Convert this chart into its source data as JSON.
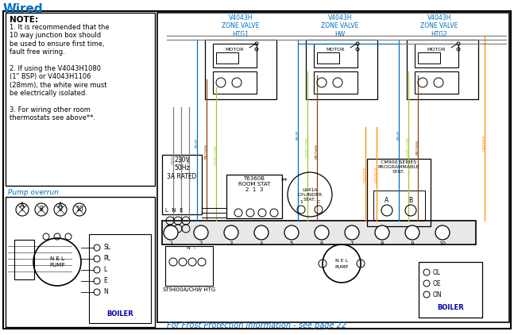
{
  "title": "Wired",
  "title_color": "#0070C0",
  "title_fontsize": 11,
  "bg_color": "#ffffff",
  "border_color": "#000000",
  "note_title": "NOTE:",
  "note_lines": "1. It is recommended that the\n10 way junction box should\nbe used to ensure first time,\nfault free wiring.\n\n2. If using the V4043H1080\n(1\" BSP) or V4043H1106\n(28mm), the white wire must\nbe electrically isolated.\n\n3. For wiring other room\nthermostats see above**.",
  "pump_overrun_label": "Pump overrun",
  "footer_text": "For Frost Protection information - see page 22",
  "footer_color": "#0070C0",
  "zone_valve_labels": [
    "V4043H\nZONE VALVE\nHTG1",
    "V4043H\nZONE VALVE\nHW",
    "V4043H\nZONE VALVE\nHTG2"
  ],
  "zone_valve_color": "#0070C0",
  "supply_label": "230V\n50Hz\n3A RATED",
  "room_stat_label": "T6360B\nROOM STAT\n2  1  3",
  "cylinder_stat_label": "L641A\nCYLINDER\nSTAT.",
  "cm900_label": "CM900 SERIES\nPROGRAMMABLE\nSTAT.",
  "boiler_label": "BOILER",
  "st9400_label": "ST9400A/C",
  "hw_htg_label": "HW HTG",
  "wire_colors": {
    "grey": "#808080",
    "blue": "#0070C0",
    "brown": "#8B4513",
    "gyellow": "#9ACD32",
    "orange": "#FF8C00",
    "black": "#000000"
  },
  "text_blue": "#0070C0"
}
